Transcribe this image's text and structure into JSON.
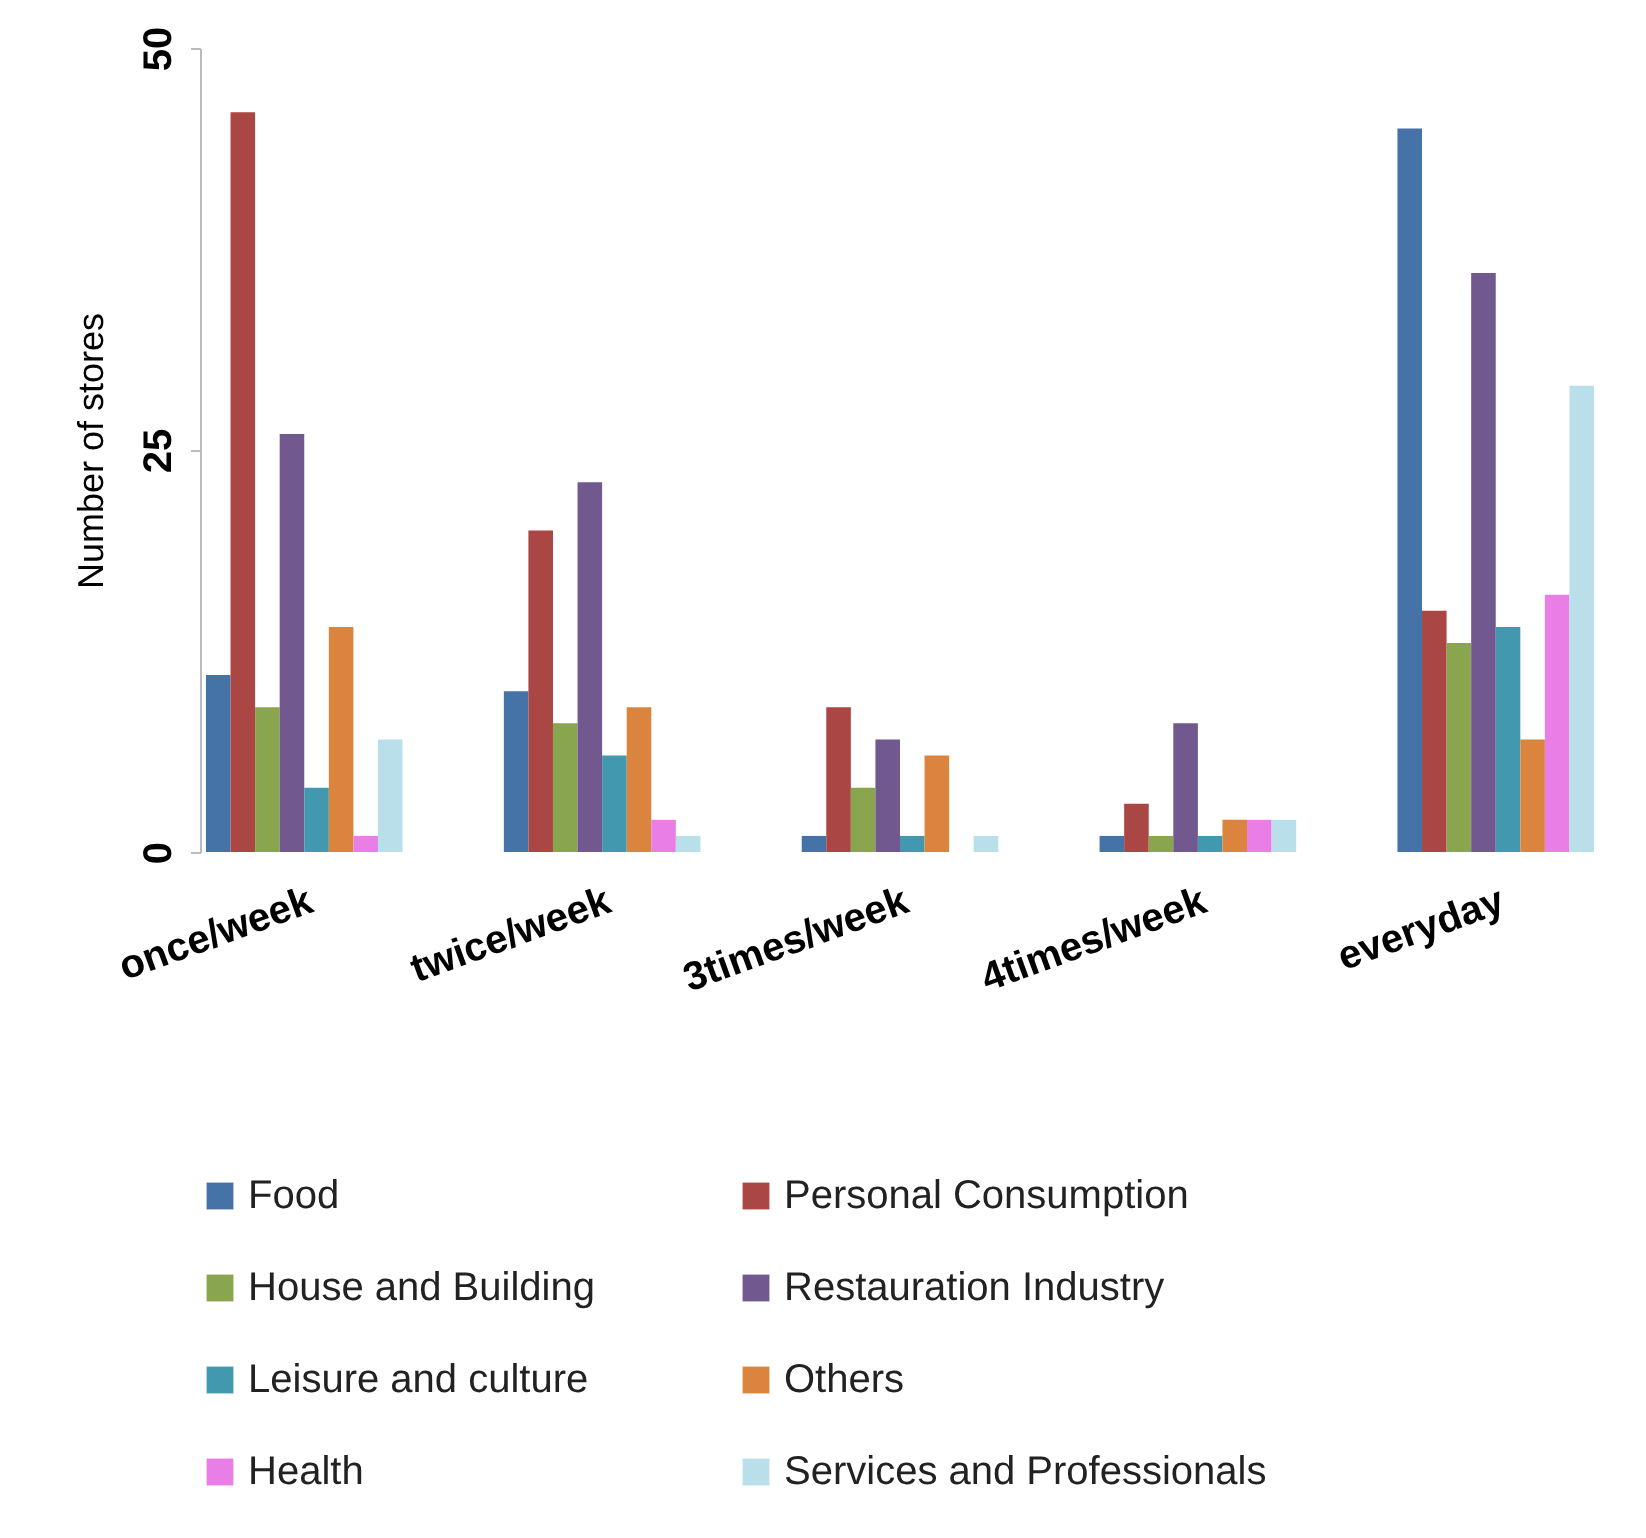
{
  "chart_data": {
    "type": "bar",
    "ylabel": "Number of stores",
    "categories": [
      "once/week",
      "twice/week",
      "3times/week",
      "4times/week",
      "everyday"
    ],
    "series": [
      {
        "name": "Food",
        "color": "#4572a7",
        "values": [
          11,
          10,
          1,
          1,
          45
        ]
      },
      {
        "name": "Personal Consumption",
        "color": "#aa4643",
        "values": [
          46,
          20,
          9,
          3,
          15
        ]
      },
      {
        "name": "House and Building",
        "color": "#89a54e",
        "values": [
          9,
          8,
          4,
          1,
          13
        ]
      },
      {
        "name": "Restauration Industry",
        "color": "#71588f",
        "values": [
          26,
          23,
          7,
          8,
          36
        ]
      },
      {
        "name": "Leisure and culture",
        "color": "#4198af",
        "values": [
          4,
          6,
          1,
          1,
          14
        ]
      },
      {
        "name": "Others",
        "color": "#db843d",
        "values": [
          14,
          9,
          6,
          2,
          7
        ]
      },
      {
        "name": "Health",
        "color": "#e97fe6",
        "values": [
          1,
          2,
          0,
          2,
          16
        ]
      },
      {
        "name": "Services and Professionals",
        "color": "#b9e0ea",
        "values": [
          7,
          1,
          1,
          2,
          29
        ]
      }
    ],
    "ylim": [
      0,
      50
    ],
    "yticks": [
      0,
      25,
      50
    ],
    "grid": false,
    "legend": "bottom"
  }
}
